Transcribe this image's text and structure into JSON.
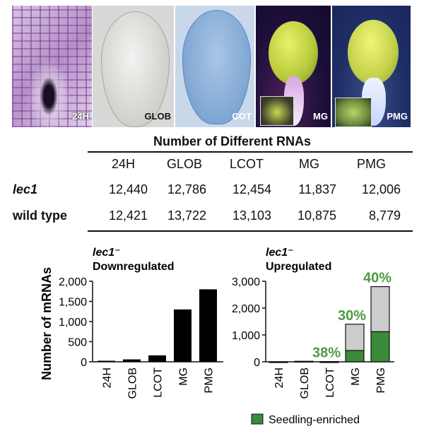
{
  "panels": [
    {
      "label": "24H"
    },
    {
      "label": "GLOB"
    },
    {
      "label": "COT"
    },
    {
      "label": "MG"
    },
    {
      "label": "PMG"
    }
  ],
  "table": {
    "title": "Number of Different RNAs",
    "columns": [
      "24H",
      "GLOB",
      "LCOT",
      "MG",
      "PMG"
    ],
    "rows": [
      {
        "label": "lec1",
        "values": [
          "12,440",
          "12,786",
          "12,454",
          "11,837",
          "12,006"
        ]
      },
      {
        "label": "wild type",
        "values": [
          "12,421",
          "13,722",
          "13,103",
          "10,875",
          "8,779"
        ]
      }
    ]
  },
  "colors": {
    "bar_black": "#000000",
    "bar_gray": "#cccccc",
    "enriched_green": "#3a8a3a",
    "percent_green": "#4f9a44"
  },
  "chart_data": [
    {
      "type": "bar",
      "title": "lec1⁻",
      "subtitle": "Downregulated",
      "ylabel": "Number of mRNAs",
      "categories": [
        "24H",
        "GLOB",
        "LCOT",
        "MG",
        "PMG"
      ],
      "values": [
        20,
        60,
        160,
        1300,
        1800
      ],
      "ylim": [
        0,
        2000
      ],
      "yticks": [
        "0",
        "500",
        "1,000",
        "1,500",
        "2,000"
      ],
      "ytick_values": [
        0,
        500,
        1000,
        1500,
        2000
      ]
    },
    {
      "type": "bar",
      "stacked": true,
      "title": "lec1⁻",
      "subtitle": "Upregulated",
      "categories": [
        "24H",
        "GLOB",
        "LCOT",
        "MG",
        "PMG"
      ],
      "series": [
        {
          "name": "Seedling-enriched",
          "values": [
            0,
            0,
            4,
            420,
            1120
          ]
        },
        {
          "values": [
            3,
            20,
            6,
            980,
            1680
          ]
        }
      ],
      "percent_labels": [
        "",
        "",
        "38%",
        "30%",
        "40%"
      ],
      "ylim": [
        0,
        3000
      ],
      "yticks": [
        "0",
        "1,000",
        "2,000",
        "3,000"
      ],
      "ytick_values": [
        0,
        1000,
        2000,
        3000
      ],
      "legend": "bottom-right"
    }
  ]
}
